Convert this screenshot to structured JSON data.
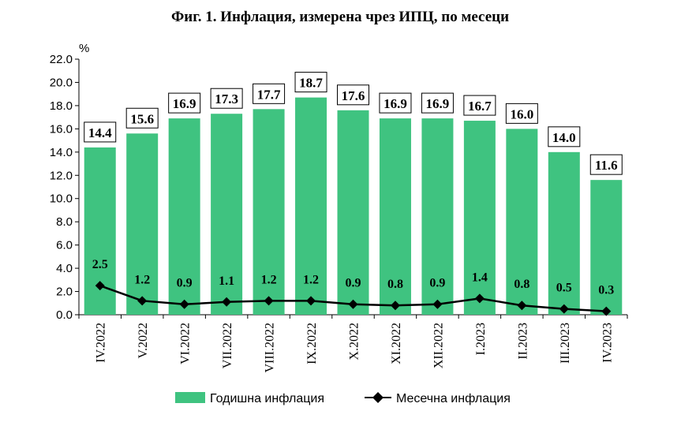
{
  "chart_data": {
    "type": "bar",
    "title": "Фиг. 1. Инфлация, измерена чрез ИПЦ, по месеци",
    "ylabel": "%",
    "ylim": [
      0,
      22
    ],
    "ytick_step": 2,
    "ytick_labels": [
      "0.0",
      "2.0",
      "4.0",
      "6.0",
      "8.0",
      "10.0",
      "12.0",
      "14.0",
      "16.0",
      "18.0",
      "20.0",
      "22.0"
    ],
    "grid": false,
    "legend_placement": "bottom",
    "categories": [
      "IV.2022",
      "V.2022",
      "VI.2022",
      "VII.2022",
      "VIII.2022",
      "IX.2022",
      "X.2022",
      "XI.2022",
      "XII.2022",
      "I.2023",
      "II.2023",
      "III.2023",
      "IV.2023"
    ],
    "series": [
      {
        "name": "Годишна инфлация",
        "type": "bar",
        "color": "#3fc380",
        "values": [
          14.4,
          15.6,
          16.9,
          17.3,
          17.7,
          18.7,
          17.6,
          16.9,
          16.9,
          16.7,
          16.0,
          14.0,
          11.6
        ],
        "labels": [
          "14.4",
          "15.6",
          "16.9",
          "17.3",
          "17.7",
          "18.7",
          "17.6",
          "16.9",
          "16.9",
          "16.7",
          "16.0",
          "14.0",
          "11.6"
        ]
      },
      {
        "name": "Месечна инфлация",
        "type": "line",
        "color": "#000000",
        "marker": "diamond",
        "values": [
          2.5,
          1.2,
          0.9,
          1.1,
          1.2,
          1.2,
          0.9,
          0.8,
          0.9,
          1.4,
          0.8,
          0.5,
          0.3
        ],
        "labels": [
          "2.5",
          "1.2",
          "0.9",
          "1.1",
          "1.2",
          "1.2",
          "0.9",
          "0.8",
          "0.9",
          "1.4",
          "0.8",
          "0.5",
          "0.3"
        ]
      }
    ]
  }
}
